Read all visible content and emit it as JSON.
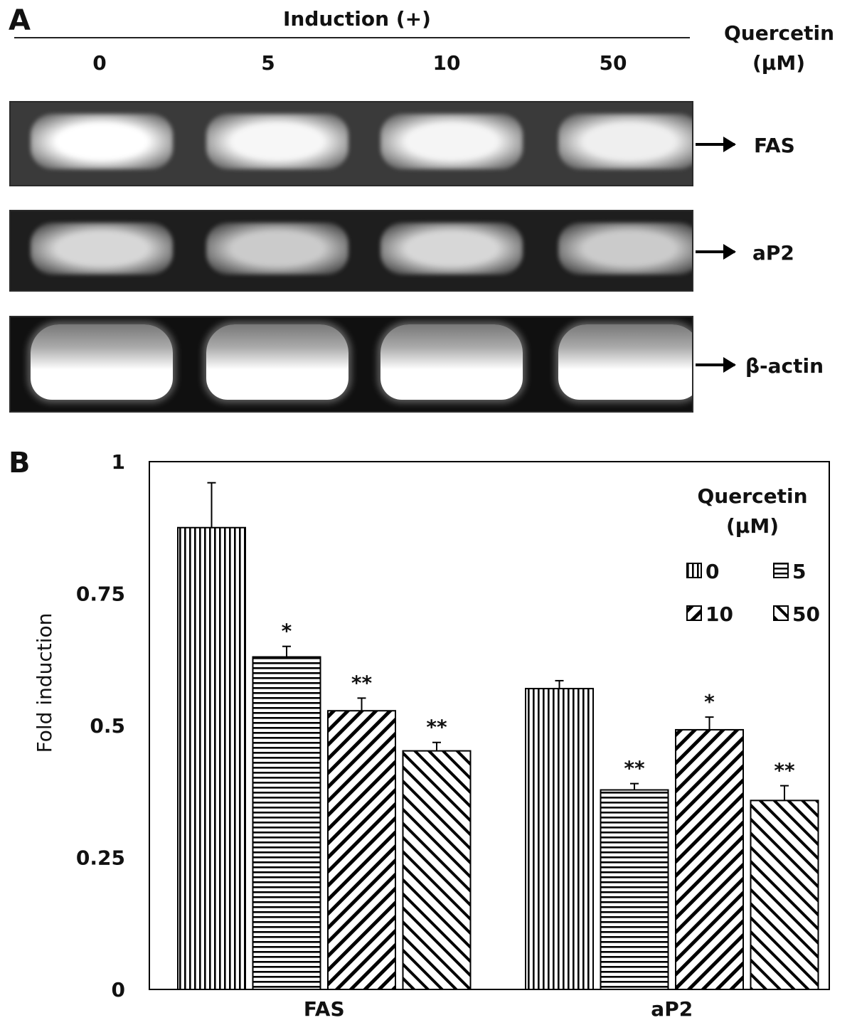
{
  "panel_a": {
    "letter": "A",
    "induction_label": "Induction (+)",
    "quercetin_label": "Quercetin",
    "unit_label": "(μM)",
    "concentrations": [
      "0",
      "5",
      "10",
      "50"
    ],
    "gels": [
      {
        "label": "FAS",
        "background": "#3a3a3a",
        "intensities": [
          1.0,
          0.92,
          0.9,
          0.85
        ]
      },
      {
        "label": "aP2",
        "background": "#1e1e1e",
        "intensities": [
          0.62,
          0.5,
          0.62,
          0.5
        ]
      },
      {
        "label": "β-actin",
        "background": "#101010",
        "intensities": [
          1.0,
          1.0,
          1.0,
          1.0
        ]
      }
    ]
  },
  "panel_b": {
    "letter": "B"
  },
  "chart_data": {
    "type": "bar",
    "title": "",
    "xlabel": "",
    "ylabel": "Fold induction",
    "ylim": [
      0,
      1
    ],
    "yticks": [
      0,
      0.25,
      0.5,
      0.75,
      1
    ],
    "ytick_labels": [
      "0",
      "0.25",
      "0.5",
      "0.75",
      "1"
    ],
    "categories": [
      "FAS",
      "aP2"
    ],
    "grid": false,
    "legend": {
      "title_line1": "Quercetin",
      "title_line2": "(μM)",
      "placement": "top-right"
    },
    "series": [
      {
        "name": "0",
        "pattern": "vertical",
        "values": [
          0.875,
          0.57
        ],
        "errors": [
          0.085,
          0.015
        ],
        "significance": [
          "",
          ""
        ]
      },
      {
        "name": "5",
        "pattern": "horizontal",
        "values": [
          0.63,
          0.378
        ],
        "errors": [
          0.02,
          0.012
        ],
        "significance": [
          "*",
          "**"
        ]
      },
      {
        "name": "10",
        "pattern": "diag-down",
        "values": [
          0.528,
          0.492
        ],
        "errors": [
          0.024,
          0.024
        ],
        "significance": [
          "**",
          "*"
        ]
      },
      {
        "name": "50",
        "pattern": "diag-up",
        "values": [
          0.452,
          0.358
        ],
        "errors": [
          0.016,
          0.028
        ],
        "significance": [
          "**",
          "**"
        ]
      }
    ]
  }
}
